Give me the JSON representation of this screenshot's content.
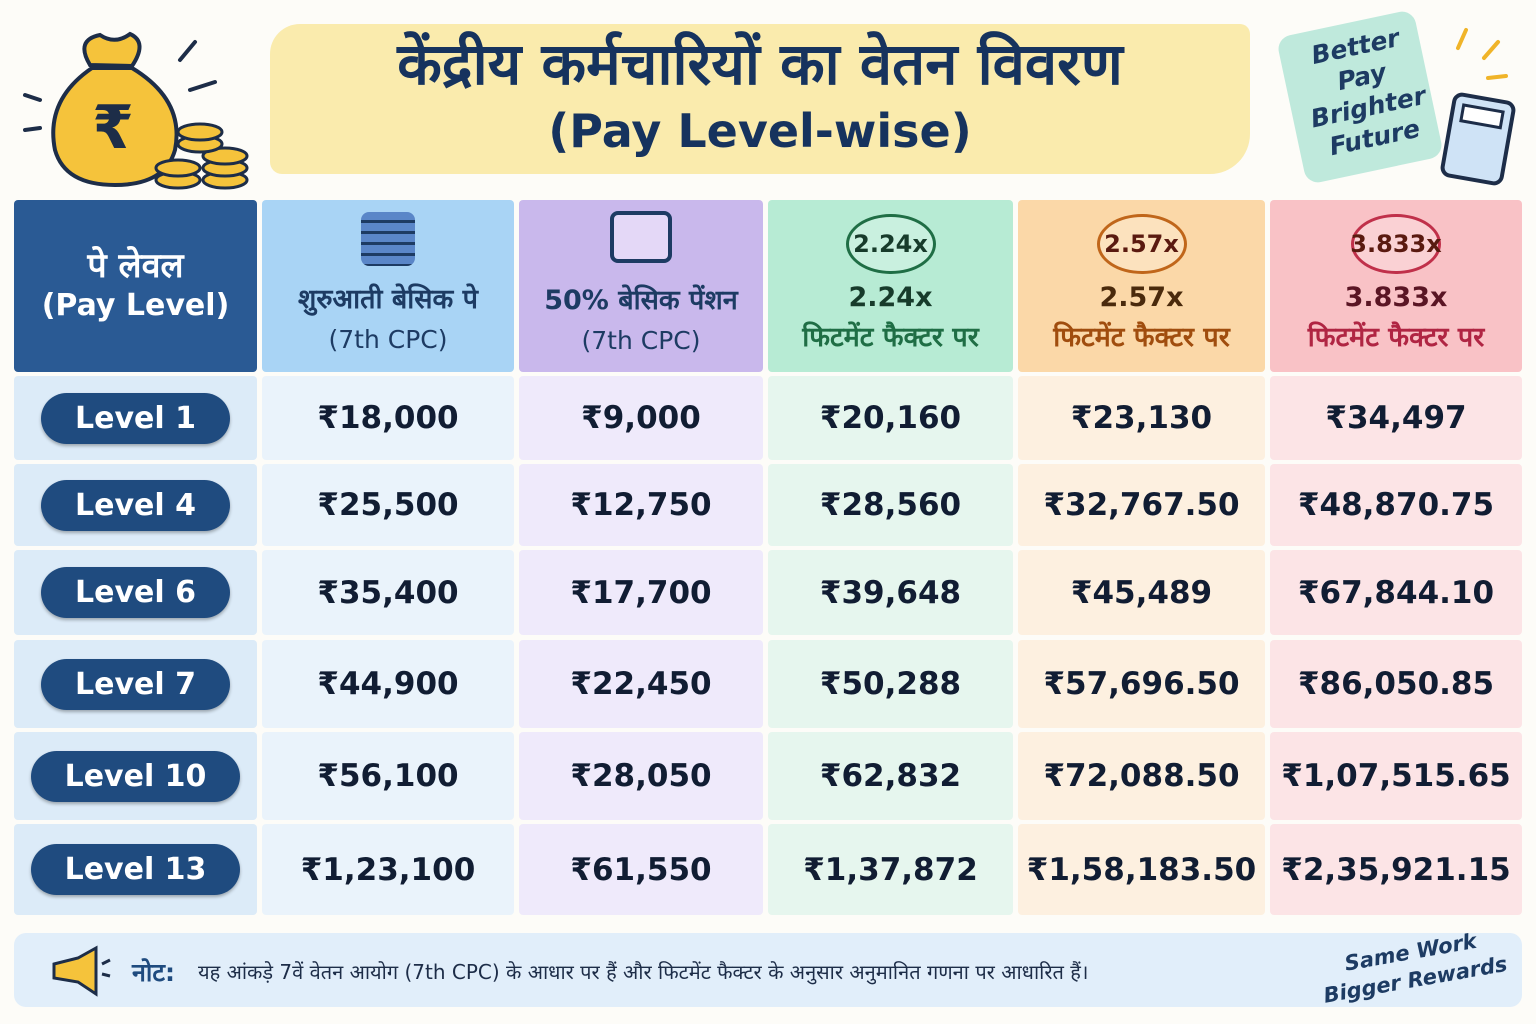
{
  "header": {
    "title": "केंद्रीय कर्मचारियों का वेतन विवरण",
    "subtitle": "(Pay Level-wise)",
    "badge": [
      "Better",
      "Pay",
      "Brighter",
      "Future"
    ]
  },
  "table": {
    "columns": [
      {
        "lines": [
          "पे लेवल",
          "(Pay Level)"
        ]
      },
      {
        "lines": [
          "शुरुआती बेसिक पे",
          "(7th CPC)"
        ]
      },
      {
        "lines": [
          "50% बेसिक पेंशन",
          "(7th CPC)"
        ]
      },
      {
        "badge": "2.24x",
        "lines": [
          "2.24x",
          "फिटमेंट फैक्टर पर"
        ]
      },
      {
        "badge": "2.57x",
        "lines": [
          "2.57x",
          "फिटमेंट फैक्टर पर"
        ]
      },
      {
        "badge": "3.833x",
        "lines": [
          "3.833x",
          "फिटमेंट फैक्टर पर"
        ]
      }
    ],
    "rows": [
      [
        "Level 1",
        "₹18,000",
        "₹9,000",
        "₹20,160",
        "₹23,130",
        "₹34,497"
      ],
      [
        "Level 4",
        "₹25,500",
        "₹12,750",
        "₹28,560",
        "₹32,767.50",
        "₹48,870.75"
      ],
      [
        "Level 6",
        "₹35,400",
        "₹17,700",
        "₹39,648",
        "₹45,489",
        "₹67,844.10"
      ],
      [
        "Level 7",
        "₹44,900",
        "₹22,450",
        "₹50,288",
        "₹57,696.50",
        "₹86,050.85"
      ],
      [
        "Level 10",
        "₹56,100",
        "₹28,050",
        "₹62,832",
        "₹72,088.50",
        "₹1,07,515.65"
      ],
      [
        "Level 13",
        "₹1,23,100",
        "₹61,550",
        "₹1,37,872",
        "₹1,58,183.50",
        "₹2,35,921.15"
      ]
    ]
  },
  "note": {
    "label": "नोट:",
    "text": "यह आंकड़े 7वें वेतन आयोग (7th CPC) के आधार पर हैं और फिटमेंट फैक्टर के अनुसार अनुमानित गणना पर आधारित हैं।"
  },
  "tagline": [
    "Same Work",
    "Bigger Rewards"
  ]
}
